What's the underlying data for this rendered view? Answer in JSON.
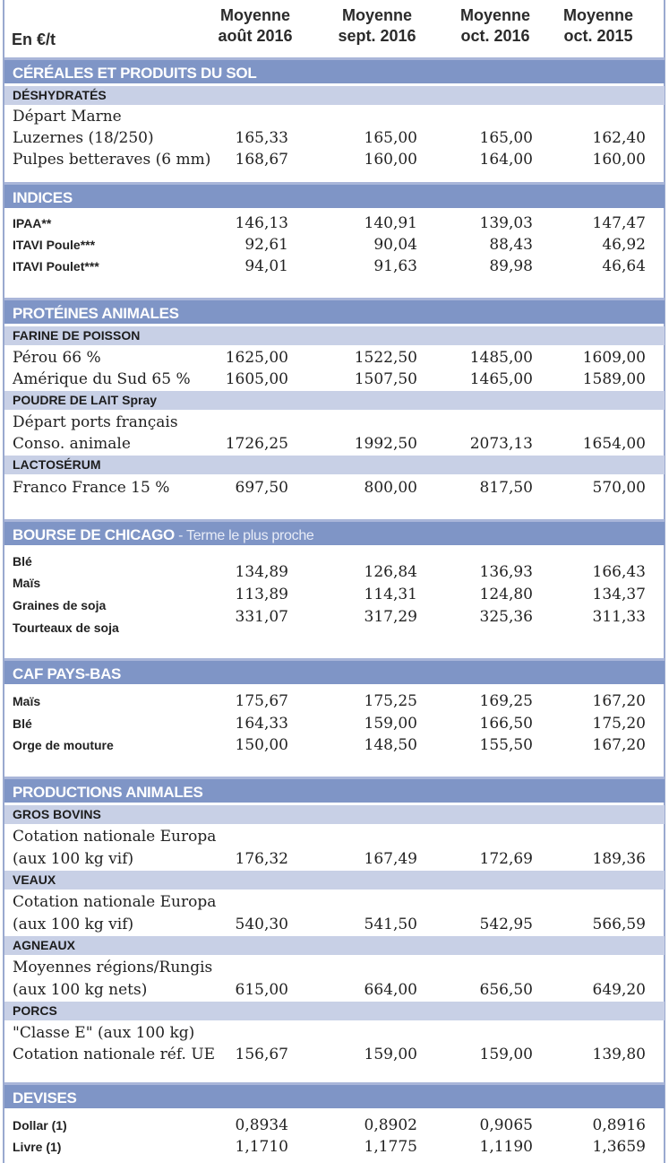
{
  "header": {
    "unit": "En €/t",
    "columns": [
      "Moyenne\naoût 2016",
      "Moyenne\nsept. 2016",
      "Moyenne\noct. 2016",
      "Moyenne\noct. 2015"
    ]
  },
  "sections": {
    "cereales": {
      "title": "CÉRÉALES ET PRODUITS DU SOL",
      "sub_deshydrates": "DÉSHYDRATÉS",
      "depart_marne": "Départ Marne",
      "luzernes": {
        "label": "Luzernes (18/250)",
        "values": [
          "165,33",
          "165,00",
          "165,00",
          "162,40"
        ]
      },
      "pulpes": {
        "label": "Pulpes betteraves (6 mm)",
        "values": [
          "168,67",
          "160,00",
          "164,00",
          "160,00"
        ]
      }
    },
    "indices": {
      "title": "INDICES",
      "ipaa": {
        "label": "IPAA**",
        "values": [
          "146,13",
          "140,91",
          "139,03",
          "147,47"
        ]
      },
      "itavi_poule": {
        "label": "ITAVI Poule***",
        "values": [
          "92,61",
          "90,04",
          "88,43",
          "46,92"
        ]
      },
      "itavi_poulet": {
        "label": "ITAVI Poulet***",
        "values": [
          "94,01",
          "91,63",
          "89,98",
          "46,64"
        ]
      }
    },
    "proteines": {
      "title": "PROTÉINES ANIMALES",
      "sub_farine": "FARINE DE POISSON",
      "perou": {
        "label": "Pérou 66 %",
        "values": [
          "1625,00",
          "1522,50",
          "1485,00",
          "1609,00"
        ]
      },
      "amerique": {
        "label": "Amérique du Sud 65 %",
        "values": [
          "1605,00",
          "1507,50",
          "1465,00",
          "1589,00"
        ]
      },
      "sub_poudre": "POUDRE DE LAIT Spray",
      "depart_ports": "Départ ports français",
      "conso": {
        "label": "Conso. animale",
        "values": [
          "1726,25",
          "1992,50",
          "2073,13",
          "1654,00"
        ]
      },
      "sub_lactoserum": "LACTOSÉRUM",
      "franco": {
        "label": "Franco France 15 %",
        "values": [
          "697,50",
          "800,00",
          "817,50",
          "570,00"
        ]
      }
    },
    "chicago": {
      "title": "BOURSE DE CHICAGO",
      "subtitle": " - Terme le plus proche",
      "ble": {
        "label": "Blé",
        "values": [
          "134,89",
          "126,84",
          "136,93",
          "166,43"
        ]
      },
      "mais": {
        "label": "Maïs",
        "values": [
          "113,89",
          "114,31",
          "124,80",
          "134,37"
        ]
      },
      "soja": {
        "label": "Graines de soja",
        "values": [
          "331,07",
          "317,29",
          "325,36",
          "311,33"
        ]
      },
      "tourteaux": {
        "label": "Tourteaux de soja"
      }
    },
    "caf": {
      "title": "CAF PAYS-BAS",
      "mais": {
        "label": "Maïs",
        "values": [
          "175,67",
          "175,25",
          "169,25",
          "167,20"
        ]
      },
      "ble": {
        "label": "Blé",
        "values": [
          "164,33",
          "159,00",
          "166,50",
          "175,20"
        ]
      },
      "orge": {
        "label": "Orge de mouture",
        "values": [
          "150,00",
          "148,50",
          "155,50",
          "167,20"
        ]
      }
    },
    "productions": {
      "title": "PRODUCTIONS ANIMALES",
      "sub_bovins": "GROS BOVINS",
      "bovins_l1": "Cotation nationale Europa",
      "bovins": {
        "label": "(aux 100 kg vif)",
        "values": [
          "176,32",
          "167,49",
          "172,69",
          "189,36"
        ]
      },
      "sub_veaux": "VEAUX",
      "veaux_l1": "Cotation nationale Europa",
      "veaux": {
        "label": "(aux 100 kg vif)",
        "values": [
          "540,30",
          "541,50",
          "542,95",
          "566,59"
        ]
      },
      "sub_agneaux": "AGNEAUX",
      "agneaux_l1": "Moyennes régions/Rungis",
      "agneaux": {
        "label": "(aux 100 kg nets)",
        "values": [
          "615,00",
          "664,00",
          "656,50",
          "649,20"
        ]
      },
      "sub_porcs": "PORCS",
      "porcs_l1": "\"Classe E\" (aux 100 kg)",
      "porcs": {
        "label": "Cotation nationale réf. UE",
        "values": [
          "156,67",
          "159,00",
          "159,00",
          "139,80"
        ]
      }
    },
    "devises": {
      "title": "DEVISES",
      "dollar": {
        "label": "Dollar (1)",
        "values": [
          "0,8934",
          "0,8902",
          "0,9065",
          "0,8916"
        ]
      },
      "livre": {
        "label": "Livre (1)",
        "values": [
          "1,1710",
          "1,1775",
          "1,1190",
          "1,3659"
        ]
      }
    }
  }
}
